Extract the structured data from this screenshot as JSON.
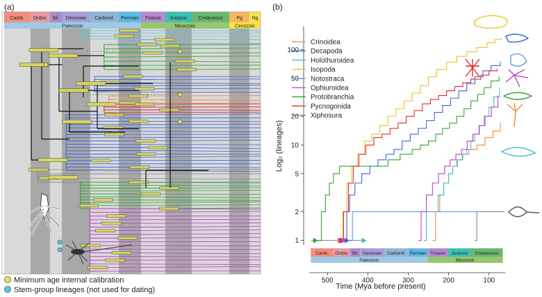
{
  "panel_a": {
    "label": "(a)",
    "periods": [
      "Camb.",
      "Ordov.",
      "Sil.",
      "Devonian",
      "Carbonif.",
      "Permian",
      "Triassic",
      "Jurassic",
      "Cretaceous",
      "Pg",
      "Ng"
    ],
    "eras": [
      "Paleozoic",
      "Mesozoic",
      "Cenozoic"
    ],
    "legend": [
      "Minimum age internal calibration",
      "Stem-group lineages (not used for dating)"
    ],
    "colors": {
      "calibration": "#e8e35a",
      "stem": "#5cc8d8",
      "bar": "#d8d65a"
    }
  },
  "panel_b": {
    "label": "(b)"
  },
  "chart_data": {
    "type": "line",
    "title": "",
    "xlabel": "Time (Mya before present)",
    "ylabel": "Log₂ (lineages)",
    "x_ticks": [
      500,
      400,
      300,
      200,
      100
    ],
    "y_ticks": [
      1,
      2,
      5,
      10,
      20,
      50,
      100
    ],
    "xlim": [
      545,
      60
    ],
    "ylim": [
      0.9,
      175
    ],
    "y_scale": "log",
    "legend_position": "top-left",
    "timescale_periods": [
      "Camb.",
      "Ordov.",
      "Sil.",
      "Devonian",
      "Carbonif.",
      "Permian",
      "Triassic",
      "Jurassic",
      "Cretaceous"
    ],
    "timescale_eras": [
      "Paleozoic",
      "Mesozoic"
    ],
    "series": [
      {
        "name": "Crinoidea",
        "color": "#f08a32",
        "points": [
          [
            240,
            1
          ],
          [
            232,
            2
          ],
          [
            222,
            3
          ],
          [
            212,
            4
          ],
          [
            200,
            5
          ],
          [
            190,
            6
          ],
          [
            180,
            7
          ],
          [
            165,
            8
          ],
          [
            150,
            9
          ],
          [
            130,
            10
          ],
          [
            110,
            12
          ],
          [
            90,
            14
          ],
          [
            72,
            17
          ]
        ]
      },
      {
        "name": "Decapoda",
        "color": "#3a64d8",
        "points": [
          [
            457,
            1
          ],
          [
            452,
            2
          ],
          [
            445,
            3
          ],
          [
            432,
            4
          ],
          [
            415,
            5
          ],
          [
            395,
            6
          ],
          [
            375,
            7
          ],
          [
            355,
            8
          ],
          [
            335,
            9
          ],
          [
            315,
            11
          ],
          [
            295,
            13
          ],
          [
            275,
            15
          ],
          [
            255,
            18
          ],
          [
            235,
            22
          ],
          [
            215,
            26
          ],
          [
            195,
            31
          ],
          [
            175,
            37
          ],
          [
            155,
            44
          ],
          [
            135,
            52
          ],
          [
            115,
            60
          ],
          [
            95,
            68
          ],
          [
            72,
            75
          ]
        ]
      },
      {
        "name": "Holothuroidea",
        "color": "#3bbfcc",
        "points": [
          [
            262,
            1
          ],
          [
            255,
            2
          ],
          [
            235,
            2
          ],
          [
            226,
            3
          ],
          [
            212,
            4
          ],
          [
            200,
            5
          ],
          [
            190,
            6
          ],
          [
            178,
            7
          ],
          [
            166,
            8
          ],
          [
            155,
            9
          ],
          [
            145,
            11
          ],
          [
            135,
            13
          ],
          [
            125,
            16
          ],
          [
            112,
            20
          ],
          [
            100,
            25
          ],
          [
            88,
            32
          ],
          [
            74,
            40
          ]
        ]
      },
      {
        "name": "Isopoda",
        "color": "#f0c020",
        "points": [
          [
            470,
            1
          ],
          [
            462,
            2
          ],
          [
            452,
            4
          ],
          [
            440,
            6
          ],
          [
            425,
            8
          ],
          [
            408,
            11
          ],
          [
            390,
            13
          ],
          [
            370,
            16
          ],
          [
            350,
            20
          ],
          [
            330,
            24
          ],
          [
            310,
            29
          ],
          [
            290,
            35
          ],
          [
            270,
            42
          ],
          [
            250,
            52
          ],
          [
            230,
            62
          ],
          [
            205,
            74
          ],
          [
            180,
            85
          ],
          [
            155,
            95
          ],
          [
            130,
            105
          ],
          [
            105,
            118
          ],
          [
            85,
            128
          ],
          [
            70,
            133
          ]
        ]
      },
      {
        "name": "Notostraca",
        "color": "#5aa0dc",
        "points": [
          [
            445,
            1
          ],
          [
            438,
            2
          ],
          [
            250,
            2
          ],
          [
            135,
            2
          ],
          [
            80,
            2
          ]
        ]
      },
      {
        "name": "Ophiuroidea",
        "color": "#c03cc8",
        "points": [
          [
            275,
            1
          ],
          [
            268,
            2
          ],
          [
            255,
            3
          ],
          [
            240,
            4
          ],
          [
            225,
            5
          ],
          [
            210,
            6
          ],
          [
            196,
            7
          ],
          [
            182,
            8
          ],
          [
            168,
            9
          ],
          [
            154,
            11
          ],
          [
            140,
            13
          ],
          [
            124,
            16
          ],
          [
            110,
            20
          ],
          [
            94,
            25
          ],
          [
            78,
            33
          ]
        ]
      },
      {
        "name": "Protobranchia",
        "color": "#2aa82a",
        "points": [
          [
            525,
            1
          ],
          [
            515,
            2
          ],
          [
            505,
            3
          ],
          [
            495,
            4
          ],
          [
            485,
            5
          ],
          [
            470,
            6
          ],
          [
            440,
            6
          ],
          [
            380,
            6
          ],
          [
            350,
            7
          ],
          [
            320,
            8
          ],
          [
            290,
            9
          ],
          [
            270,
            10
          ],
          [
            250,
            11
          ],
          [
            232,
            13
          ],
          [
            215,
            15
          ],
          [
            198,
            17
          ],
          [
            180,
            20
          ],
          [
            162,
            24
          ],
          [
            145,
            29
          ],
          [
            128,
            34
          ],
          [
            112,
            40
          ],
          [
            95,
            47
          ],
          [
            75,
            52
          ]
        ]
      },
      {
        "name": "Pycnogonida",
        "color": "#e0282d",
        "points": [
          [
            468,
            1
          ],
          [
            460,
            2
          ],
          [
            448,
            4
          ],
          [
            436,
            6
          ],
          [
            422,
            8
          ],
          [
            405,
            10
          ],
          [
            385,
            12
          ],
          [
            365,
            13
          ],
          [
            345,
            15
          ],
          [
            325,
            17
          ],
          [
            305,
            20
          ],
          [
            285,
            23
          ],
          [
            265,
            27
          ],
          [
            245,
            30
          ],
          [
            225,
            33
          ],
          [
            205,
            37
          ],
          [
            185,
            41
          ],
          [
            165,
            45
          ],
          [
            145,
            49
          ],
          [
            120,
            54
          ],
          [
            100,
            60
          ],
          [
            80,
            63
          ]
        ]
      },
      {
        "name": "Xiphosura",
        "color": "#888888",
        "points": [
          [
            135,
            1
          ],
          [
            130,
            2
          ],
          [
            90,
            2
          ],
          [
            62,
            2
          ]
        ]
      }
    ],
    "markers": [
      {
        "x": 530,
        "color": "#2aa82a"
      },
      {
        "x": 470,
        "color": "#f08a32"
      },
      {
        "x": 467,
        "color": "#c03cc8"
      },
      {
        "x": 464,
        "color": "#e0282d"
      },
      {
        "x": 460,
        "color": "#c03cc8"
      },
      {
        "x": 452,
        "color": "#3a64d8"
      },
      {
        "x": 410,
        "color": "#3bbfcc"
      }
    ]
  }
}
